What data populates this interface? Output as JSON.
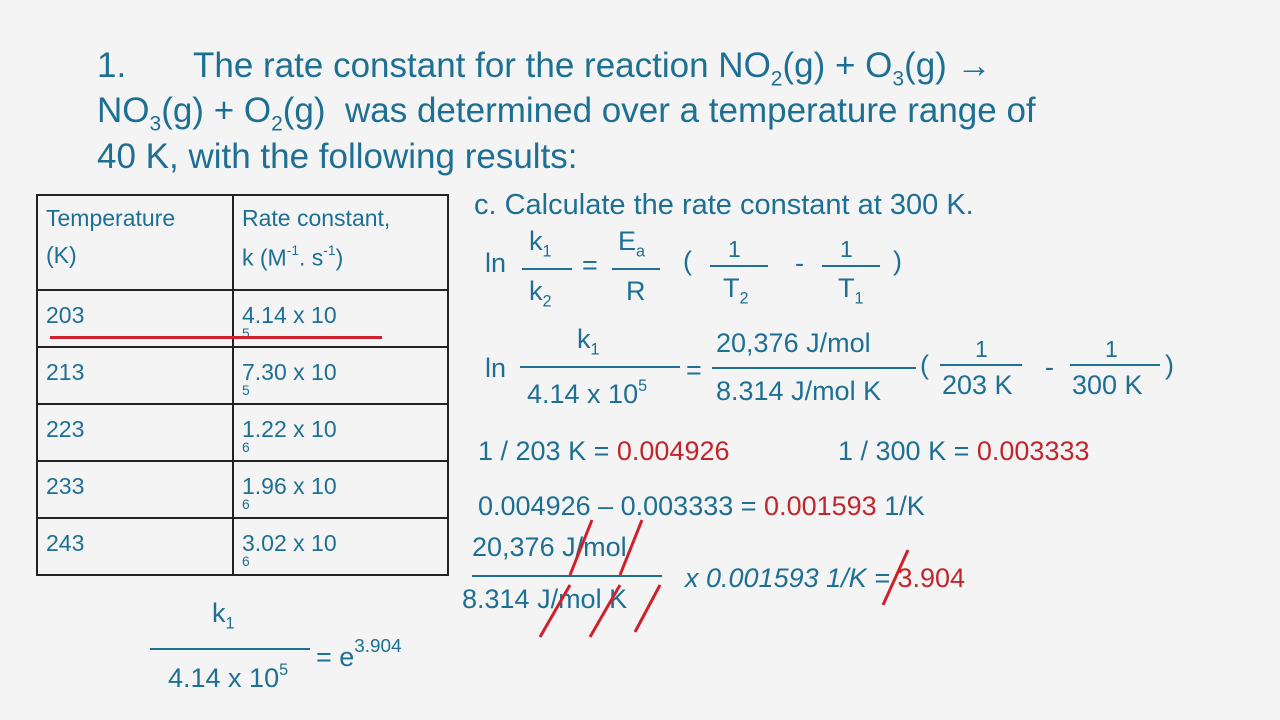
{
  "question": {
    "number": "1.",
    "line1": [
      "The rate constant for the reaction NO",
      "2",
      "(g) + O",
      "3",
      "(g) →"
    ],
    "line2": [
      "NO",
      "3",
      "(g) + O",
      "2",
      "(g)  was determined over a temperature range of"
    ],
    "line3": "40 K, with the following results:"
  },
  "table": {
    "headers": [
      [
        "Temperature",
        "(K)"
      ],
      [
        "Rate constant,",
        "k (M",
        "-1",
        ". s",
        "-1",
        ")"
      ]
    ],
    "rows": [
      [
        "203",
        "4.14 x 10",
        "5"
      ],
      [
        "213",
        "7.30 x 10",
        "5"
      ],
      [
        "223",
        "1.22 x 10",
        "6"
      ],
      [
        "233",
        "1.96 x 10",
        "6"
      ],
      [
        "243",
        "3.02 x 10",
        "6"
      ]
    ]
  },
  "answer": {
    "num": [
      "k",
      "1"
    ],
    "den": [
      "4.14 x 10",
      "5"
    ],
    "eq": "= e",
    "exp": "3.904"
  },
  "part_c": {
    "heading": "c. Calculate the rate constant at 300 K.",
    "eq1": {
      "ln": "ln",
      "k1": [
        "k",
        "1"
      ],
      "k2": [
        "k",
        "2"
      ],
      "eq": "=",
      "ea": [
        "E",
        "a"
      ],
      "r": "R",
      "open": "(",
      "one_a": "1",
      "t2": [
        "T",
        "2"
      ],
      "minus": "-",
      "one_b": "1",
      "t1": [
        "T",
        "1"
      ],
      "close": ")"
    },
    "eq2": {
      "ln": "ln",
      "k1": [
        "k",
        "1"
      ],
      "den": [
        "4.14 x 10",
        "5"
      ],
      "eq": "=",
      "num": "20,376 J/mol",
      "den2": "8.314 J/mol K",
      "open": "(",
      "one_a": "1",
      "t_a": "203 K",
      "minus": "-",
      "one_b": "1",
      "t_b": "300 K",
      "close": ")"
    },
    "line3": {
      "left_a": "1 / 203 K =",
      "res_a": "0.004926",
      "left_b": "1 / 300 K =",
      "res_b": "0.003333"
    },
    "line4": {
      "left": "0.004926 – 0.003333 =",
      "res": "0.001593",
      "unit": "1/K"
    },
    "line5": {
      "num": "20,376 J/mol",
      "den": "8.314 J/mol K",
      "mult": "x 0.001593 1/K =",
      "res": "3.904"
    }
  }
}
